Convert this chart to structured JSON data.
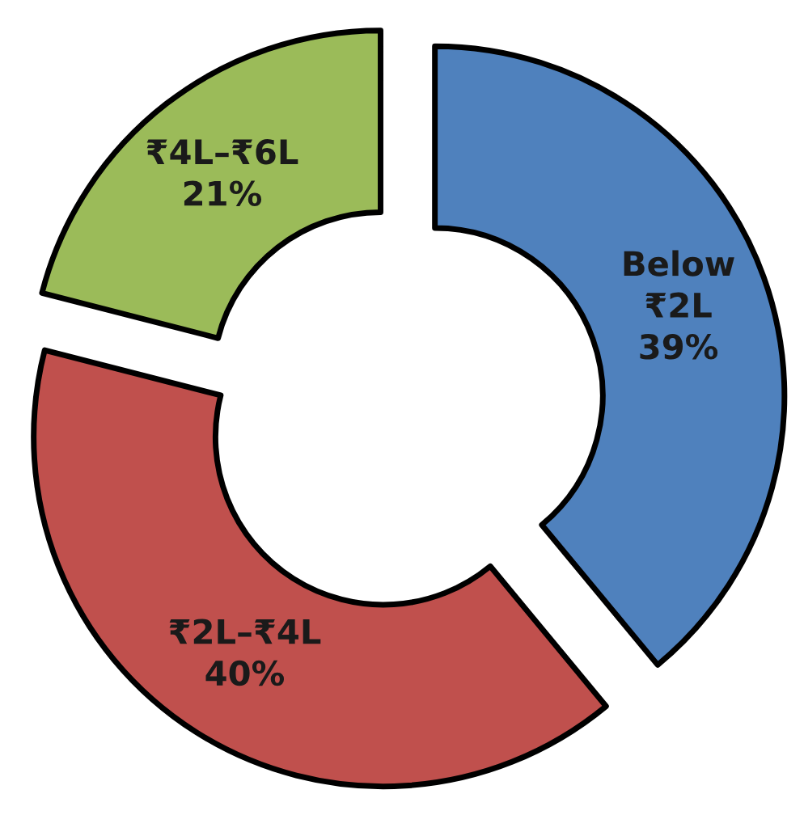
{
  "chart_data": {
    "type": "donut",
    "categories": [
      "Below ₹2L",
      "₹2L–₹4L",
      "₹4L–₹6L"
    ],
    "values": [
      39,
      40,
      21
    ],
    "value_labels": [
      "39%",
      "40%",
      "21%"
    ],
    "colors": [
      "#4f81bd",
      "#c0504d",
      "#9bbb59"
    ],
    "legend": false
  }
}
